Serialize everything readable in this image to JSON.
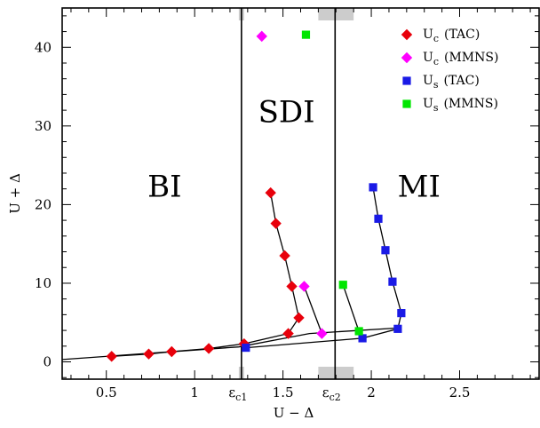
{
  "chart_data": {
    "type": "scatter",
    "xlabel": "U − Δ",
    "ylabel": "U + Δ",
    "xlim": [
      0.25,
      2.95
    ],
    "ylim": [
      -2.2,
      45.0
    ],
    "x_ticks": [
      {
        "value": 0.5,
        "label": "0.5"
      },
      {
        "value": 1.0,
        "label": "1"
      },
      {
        "value": 1.5,
        "label": "1.5"
      },
      {
        "value": 2.0,
        "label": "2"
      },
      {
        "value": 2.5,
        "label": "2.5"
      }
    ],
    "y_ticks": [
      {
        "value": 0,
        "label": "0"
      },
      {
        "value": 10,
        "label": "10"
      },
      {
        "value": 20,
        "label": "20"
      },
      {
        "value": 30,
        "label": "30"
      },
      {
        "value": 40,
        "label": "40"
      }
    ],
    "x_minor_step": 0.1,
    "y_minor_step": 2,
    "special_ticks": [
      {
        "value": 1.265,
        "label_main": "ε",
        "label_sub": "c1"
      },
      {
        "value": 1.795,
        "label_main": "ε",
        "label_sub": "c2"
      }
    ],
    "vertical_lines": [
      1.265,
      1.795
    ],
    "shaded_bands": [
      {
        "x0": 1.25,
        "x1": 1.28,
        "color": "#cccccc"
      },
      {
        "x0": 1.7,
        "x1": 1.9,
        "color": "#cccccc"
      }
    ],
    "regions": [
      {
        "label": "BI",
        "x": 0.83,
        "y": 21.0
      },
      {
        "label": "SDI",
        "x": 1.52,
        "y": 30.5
      },
      {
        "label": "MI",
        "x": 2.27,
        "y": 21.0
      }
    ],
    "boundary_curves": [
      {
        "points": [
          [
            0.25,
            0.3
          ],
          [
            1.25,
            1.9
          ],
          [
            1.65,
            3.6
          ],
          [
            2.15,
            4.3
          ]
        ]
      }
    ],
    "series": [
      {
        "name": "TAC",
        "symbol_main": "U",
        "symbol_sub": "c",
        "marker": "diamond",
        "color": "#e8000b",
        "connected": true,
        "x": [
          0.53,
          0.74,
          0.87,
          1.08,
          1.28,
          1.53,
          1.59,
          1.55,
          1.51,
          1.46,
          1.43
        ],
        "y": [
          0.7,
          1.0,
          1.3,
          1.7,
          2.3,
          3.6,
          5.6,
          9.6,
          13.5,
          17.6,
          21.5
        ]
      },
      {
        "name": "MMNS",
        "symbol_main": "U",
        "symbol_sub": "c",
        "marker": "diamond",
        "color": "#ff00ff",
        "connected": true,
        "x": [
          1.62,
          1.72
        ],
        "y": [
          9.6,
          3.6
        ]
      },
      {
        "name": "MMNS",
        "symbol_main": "U",
        "symbol_sub": "c",
        "marker": "diamond",
        "color": "#ff00ff",
        "connected": false,
        "x": [
          1.38
        ],
        "y": [
          41.4
        ]
      },
      {
        "name": "TAC",
        "symbol_main": "U",
        "symbol_sub": "s",
        "marker": "square",
        "color": "#1a1ae6",
        "connected": true,
        "x": [
          1.29,
          1.95,
          2.15,
          2.17,
          2.12,
          2.08,
          2.04,
          2.01
        ],
        "y": [
          1.8,
          3.0,
          4.2,
          6.2,
          10.2,
          14.2,
          18.2,
          22.2
        ]
      },
      {
        "name": "MMNS",
        "symbol_main": "U",
        "symbol_sub": "s",
        "marker": "square",
        "color": "#00e600",
        "connected": true,
        "x": [
          1.84,
          1.93
        ],
        "y": [
          9.8,
          3.9
        ]
      },
      {
        "name": "MMNS",
        "symbol_main": "U",
        "symbol_sub": "s",
        "marker": "square",
        "color": "#00e600",
        "connected": false,
        "x": [
          1.63
        ],
        "y": [
          41.6
        ]
      }
    ],
    "legend": {
      "position": "top-right",
      "entries": [
        {
          "marker": "diamond",
          "color": "#e8000b",
          "main": "U",
          "sub": "c",
          "paren": "(TAC)"
        },
        {
          "marker": "diamond",
          "color": "#ff00ff",
          "main": "U",
          "sub": "c",
          "paren": "(MMNS)"
        },
        {
          "marker": "square",
          "color": "#1a1ae6",
          "main": "U",
          "sub": "s",
          "paren": "(TAC)"
        },
        {
          "marker": "square",
          "color": "#00e600",
          "main": "U",
          "sub": "s",
          "paren": "(MMNS)"
        }
      ]
    }
  }
}
